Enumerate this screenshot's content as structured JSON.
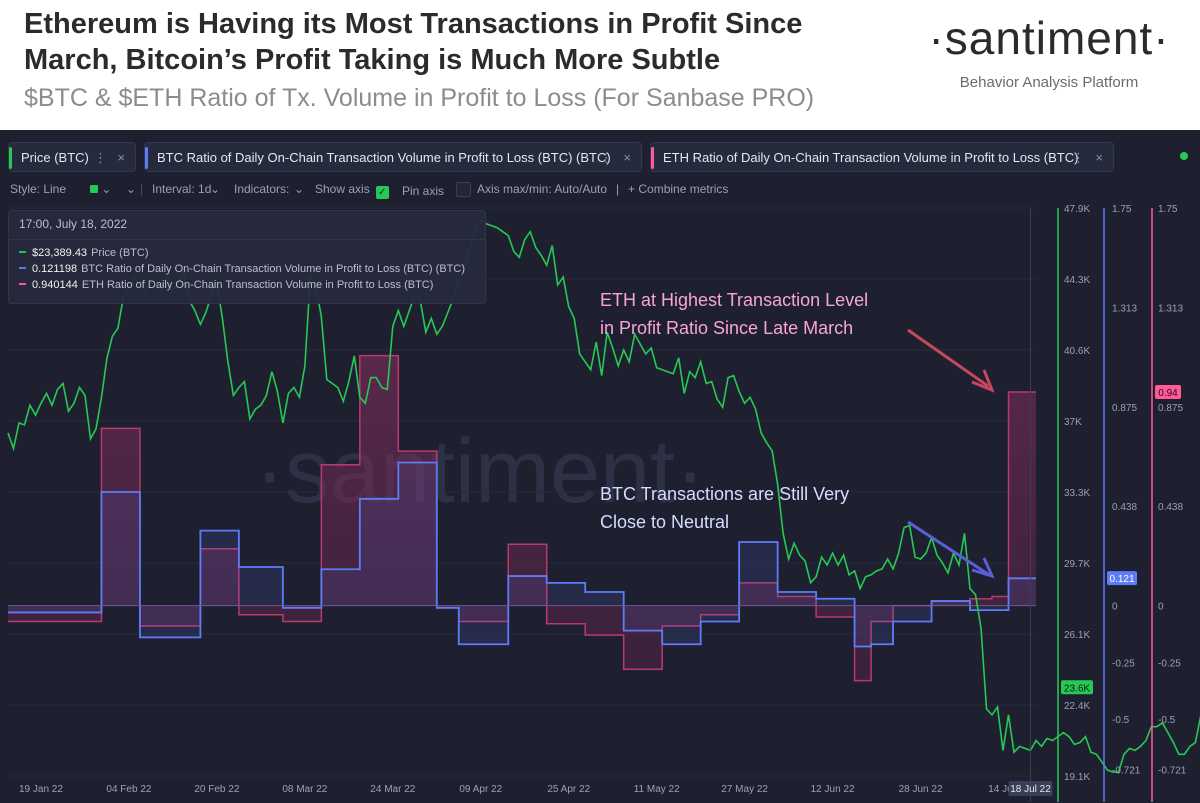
{
  "header": {
    "title": "Ethereum is Having its Most Transactions in Profit Since March, Bitcoin’s Profit Taking is Much More Subtle",
    "subtitle": "$BTC & $ETH Ratio of Tx. Volume in Profit to Loss (For Sanbase PRO)",
    "brand_name": "·santiment·",
    "brand_tagline": "Behavior Analysis Platform"
  },
  "metric_tabs": [
    {
      "label": "Price (BTC)",
      "color": "#26c953"
    },
    {
      "label": "BTC Ratio of Daily On-Chain Transaction Volume in Profit to Loss (BTC) (BTC)",
      "color": "#5e7cf8"
    },
    {
      "label": "ETH Ratio of Daily On-Chain Transaction Volume in Profit to Loss (BTC)",
      "color": "#ff5b9b"
    }
  ],
  "toolbar": {
    "style": "Style: Line",
    "interval": "Interval: 1d",
    "indicators": "Indicators:",
    "show_axis": "Show axis",
    "pin_axis": "Pin axis",
    "axis_minmax": "Axis max/min: Auto/Auto",
    "combine": "Combine metrics"
  },
  "tooltip": {
    "date": "17:00, July 18, 2022",
    "rows": [
      {
        "value": "$23,389.43",
        "label": "Price (BTC)",
        "color": "#26c953"
      },
      {
        "value": "0.121198",
        "label": "BTC Ratio of Daily On-Chain Transaction Volume in Profit to Loss (BTC) (BTC)",
        "color": "#5e7cf8"
      },
      {
        "value": "0.940144",
        "label": "ETH Ratio of Daily On-Chain Transaction Volume in Profit to Loss (BTC)",
        "color": "#ff5b9b"
      }
    ]
  },
  "annotations": {
    "eth": [
      "ETH at Highest Transaction Level",
      "in Profit Ratio Since Late March"
    ],
    "btc": [
      "BTC Transactions are Still Very",
      "Close to Neutral"
    ]
  },
  "watermark": "·santiment·",
  "colors": {
    "price": "#26c953",
    "btc": "#5e7cf8",
    "eth": "#ff5b9b",
    "bg": "#1e2030"
  },
  "chart_data": {
    "type": "line",
    "title": "$BTC & $ETH Ratio of Tx. Volume in Profit to Loss",
    "x_tick_labels": [
      "19 Jan 22",
      "04 Feb 22",
      "20 Feb 22",
      "08 Mar 22",
      "24 Mar 22",
      "09 Apr 22",
      "25 Apr 22",
      "11 May 22",
      "27 May 22",
      "12 Jun 22",
      "28 Jun 22",
      "14 Jul 22"
    ],
    "current_date_label": "18 Jul 22",
    "price_axis": {
      "ylim": [
        19100,
        47900
      ],
      "ticks": [
        "47.9K",
        "44.3K",
        "40.6K",
        "37K",
        "33.3K",
        "29.7K",
        "26.1K",
        "22.4K",
        "19.1K"
      ],
      "current_label": "23.6K"
    },
    "ratio_axes": {
      "ylim": [
        -0.75,
        1.75
      ],
      "btc_ticks": [
        "1.75",
        "1.313",
        "0.875",
        "0.438",
        "0",
        "-0.25",
        "-0.5",
        "-0.721"
      ],
      "eth_ticks": [
        "1.75",
        "1.313",
        "0.875",
        "0.438",
        "0",
        "-0.25",
        "-0.5",
        "-0.721"
      ],
      "btc_current_label": "0.121",
      "eth_current_label": "0.94"
    },
    "series": [
      {
        "name": "Price (BTC)",
        "axis": "price",
        "values": [
          36500,
          35700,
          37000,
          36900,
          37900,
          37400,
          38000,
          38500,
          37900,
          38700,
          39000,
          37600,
          38000,
          38800,
          38400,
          36200,
          36700,
          38300,
          40300,
          41400,
          41800,
          43400,
          43800,
          44400,
          44000,
          43600,
          44300,
          44100,
          43800,
          44500,
          43700,
          44200,
          44600,
          43200,
          42700,
          42000,
          42600,
          43500,
          44100,
          42300,
          40100,
          38400,
          38800,
          39100,
          37200,
          37700,
          37900,
          38400,
          39600,
          38600,
          37000,
          38500,
          38800,
          38300,
          39900,
          44500,
          43900,
          42400,
          39200,
          39000,
          38800,
          38100,
          39100,
          40400,
          38300,
          38000,
          39300,
          39300,
          38800,
          38700,
          41900,
          42700,
          41900,
          42700,
          43500,
          43200,
          41600,
          42300,
          41500,
          41900,
          42600,
          43300,
          44200,
          44800,
          45800,
          46700,
          47300,
          47100,
          47000,
          46900,
          46700,
          46500,
          45700,
          45400,
          46300,
          46700,
          45900,
          45500,
          45000,
          46000,
          44000,
          44400,
          42900,
          42300,
          40500,
          40100,
          39700,
          41100,
          39400,
          41600,
          40800,
          39900,
          40700,
          40100,
          41500,
          41000,
          40500,
          40800,
          39800,
          39700,
          39600,
          39500,
          40300,
          38500,
          39600,
          39300,
          40100,
          39000,
          39100,
          38200,
          37800,
          39300,
          39400,
          38600,
          38000,
          38300,
          37700,
          36500,
          36000,
          35600,
          33900,
          31400,
          30100,
          30900,
          30300,
          30000,
          28900,
          29200,
          30200,
          29800,
          30400,
          29800,
          30300,
          29300,
          29500,
          28600,
          29200,
          29300,
          29500,
          29600,
          30100,
          29600,
          30400,
          31700,
          31800,
          30200,
          30100,
          30400,
          31200,
          30300,
          29900,
          29400,
          30400,
          29800,
          31400,
          28600,
          28300,
          26600,
          22500,
          22200,
          22600,
          20400,
          22200,
          20300,
          20600,
          20500,
          20400,
          20900,
          20600,
          21000,
          20900,
          21100,
          21300,
          21100,
          20700,
          20800,
          21100,
          20300,
          20200,
          19800,
          19400,
          19300,
          19300,
          20200,
          20500,
          20400,
          20600,
          20900,
          21600,
          21600,
          21800,
          21300,
          20800,
          20200,
          20200,
          20600,
          20800,
          22200,
          23400,
          23600
        ]
      },
      {
        "name": "BTC Ratio of Daily On-Chain Transaction Volume in Profit to Loss (BTC) (BTC)",
        "axis": "ratio",
        "steps": [
          {
            "start": "2022-01-13",
            "end": "2022-01-30",
            "value": -0.03
          },
          {
            "start": "2022-01-30",
            "end": "2022-02-06",
            "value": 0.5
          },
          {
            "start": "2022-02-06",
            "end": "2022-02-17",
            "value": -0.14
          },
          {
            "start": "2022-02-17",
            "end": "2022-02-24",
            "value": 0.33
          },
          {
            "start": "2022-02-24",
            "end": "2022-03-04",
            "value": 0.17
          },
          {
            "start": "2022-03-04",
            "end": "2022-03-11",
            "value": -0.01
          },
          {
            "start": "2022-03-11",
            "end": "2022-03-18",
            "value": 0.16
          },
          {
            "start": "2022-03-18",
            "end": "2022-03-25",
            "value": 0.47
          },
          {
            "start": "2022-03-25",
            "end": "2022-04-01",
            "value": 0.63
          },
          {
            "start": "2022-04-01",
            "end": "2022-04-05",
            "value": -0.01
          },
          {
            "start": "2022-04-05",
            "end": "2022-04-14",
            "value": -0.17
          },
          {
            "start": "2022-04-14",
            "end": "2022-04-21",
            "value": 0.13
          },
          {
            "start": "2022-04-21",
            "end": "2022-04-28",
            "value": 0.1
          },
          {
            "start": "2022-04-28",
            "end": "2022-05-05",
            "value": 0.06
          },
          {
            "start": "2022-05-05",
            "end": "2022-05-12",
            "value": -0.11
          },
          {
            "start": "2022-05-12",
            "end": "2022-05-19",
            "value": -0.17
          },
          {
            "start": "2022-05-19",
            "end": "2022-05-26",
            "value": -0.07
          },
          {
            "start": "2022-05-26",
            "end": "2022-06-02",
            "value": 0.28
          },
          {
            "start": "2022-06-02",
            "end": "2022-06-09",
            "value": 0.06
          },
          {
            "start": "2022-06-09",
            "end": "2022-06-16",
            "value": 0.03
          },
          {
            "start": "2022-06-16",
            "end": "2022-06-19",
            "value": -0.18
          },
          {
            "start": "2022-06-19",
            "end": "2022-06-23",
            "value": -0.17
          },
          {
            "start": "2022-06-23",
            "end": "2022-06-30",
            "value": -0.07
          },
          {
            "start": "2022-06-30",
            "end": "2022-07-07",
            "value": 0.02
          },
          {
            "start": "2022-07-07",
            "end": "2022-07-14",
            "value": -0.02
          },
          {
            "start": "2022-07-14",
            "end": "2022-07-19",
            "value": 0.12
          }
        ]
      },
      {
        "name": "ETH Ratio of Daily On-Chain Transaction Volume in Profit to Loss (BTC)",
        "axis": "ratio",
        "steps": [
          {
            "start": "2022-01-13",
            "end": "2022-01-30",
            "value": -0.07
          },
          {
            "start": "2022-01-30",
            "end": "2022-02-06",
            "value": 0.78
          },
          {
            "start": "2022-02-06",
            "end": "2022-02-17",
            "value": -0.09
          },
          {
            "start": "2022-02-17",
            "end": "2022-02-24",
            "value": 0.25
          },
          {
            "start": "2022-02-24",
            "end": "2022-03-04",
            "value": -0.04
          },
          {
            "start": "2022-03-04",
            "end": "2022-03-11",
            "value": -0.07
          },
          {
            "start": "2022-03-11",
            "end": "2022-03-18",
            "value": 0.62
          },
          {
            "start": "2022-03-18",
            "end": "2022-03-25",
            "value": 1.1
          },
          {
            "start": "2022-03-25",
            "end": "2022-04-01",
            "value": 0.68
          },
          {
            "start": "2022-04-01",
            "end": "2022-04-05",
            "value": -0.01
          },
          {
            "start": "2022-04-05",
            "end": "2022-04-14",
            "value": -0.07
          },
          {
            "start": "2022-04-14",
            "end": "2022-04-21",
            "value": 0.27
          },
          {
            "start": "2022-04-21",
            "end": "2022-04-28",
            "value": -0.08
          },
          {
            "start": "2022-04-28",
            "end": "2022-05-05",
            "value": -0.13
          },
          {
            "start": "2022-05-05",
            "end": "2022-05-12",
            "value": -0.28
          },
          {
            "start": "2022-05-12",
            "end": "2022-05-19",
            "value": -0.09
          },
          {
            "start": "2022-05-19",
            "end": "2022-05-26",
            "value": -0.04
          },
          {
            "start": "2022-05-26",
            "end": "2022-06-02",
            "value": 0.1
          },
          {
            "start": "2022-06-02",
            "end": "2022-06-09",
            "value": 0.04
          },
          {
            "start": "2022-06-09",
            "end": "2022-06-16",
            "value": -0.05
          },
          {
            "start": "2022-06-16",
            "end": "2022-06-19",
            "value": -0.33
          },
          {
            "start": "2022-06-19",
            "end": "2022-06-23",
            "value": -0.07
          },
          {
            "start": "2022-06-23",
            "end": "2022-06-30",
            "value": 0.0
          },
          {
            "start": "2022-06-30",
            "end": "2022-07-07",
            "value": 0.02
          },
          {
            "start": "2022-07-07",
            "end": "2022-07-11",
            "value": 0.03
          },
          {
            "start": "2022-07-11",
            "end": "2022-07-14",
            "value": 0.04
          },
          {
            "start": "2022-07-14",
            "end": "2022-07-19",
            "value": 0.94
          }
        ]
      }
    ]
  }
}
